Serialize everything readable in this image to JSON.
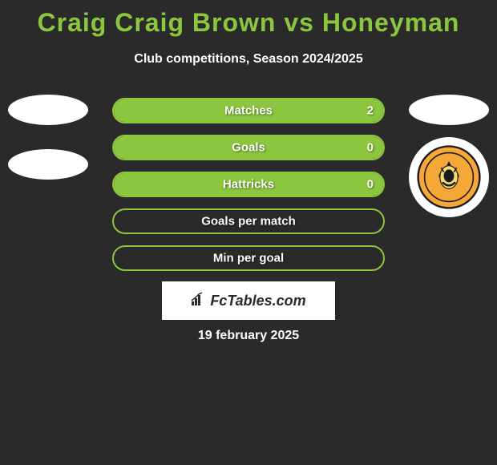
{
  "title": "Craig Craig Brown vs Honeyman",
  "subtitle": "Club competitions, Season 2024/2025",
  "stats": [
    {
      "label": "Matches",
      "value": "2",
      "fill_pct": 100
    },
    {
      "label": "Goals",
      "value": "0",
      "fill_pct": 100
    },
    {
      "label": "Hattricks",
      "value": "0",
      "fill_pct": 100
    },
    {
      "label": "Goals per match",
      "value": "",
      "fill_pct": 0
    },
    {
      "label": "Min per goal",
      "value": "",
      "fill_pct": 0
    }
  ],
  "logo_text": "FcTables.com",
  "date": "19 february 2025",
  "colors": {
    "accent": "#8cc63f",
    "background": "#2a2a2a",
    "text": "#ffffff"
  },
  "crest": {
    "primary": "#f4a838",
    "dark": "#1a1a1a",
    "label": "ALLOA ATHLETIC FC"
  }
}
